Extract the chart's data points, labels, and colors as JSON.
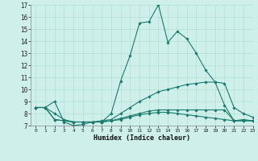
{
  "xlabel": "Humidex (Indice chaleur)",
  "x_ticks": [
    0,
    1,
    2,
    3,
    4,
    5,
    6,
    7,
    8,
    9,
    10,
    11,
    12,
    13,
    14,
    15,
    16,
    17,
    18,
    19,
    20,
    21,
    22,
    23
  ],
  "ylim": [
    7,
    17
  ],
  "xlim": [
    -0.5,
    23
  ],
  "yticks": [
    7,
    8,
    9,
    10,
    11,
    12,
    13,
    14,
    15,
    16,
    17
  ],
  "bg_color": "#cff0ea",
  "line_color": "#1a7a6e",
  "grid_color": "#aaddcc",
  "series": [
    [
      8.5,
      8.5,
      9.0,
      7.3,
      7.0,
      7.1,
      7.3,
      7.3,
      8.0,
      10.7,
      12.8,
      15.5,
      15.6,
      17.0,
      13.9,
      14.8,
      14.2,
      13.0,
      11.6,
      10.6,
      8.7,
      7.4,
      7.5,
      7.4
    ],
    [
      8.5,
      8.5,
      8.0,
      7.5,
      7.3,
      7.3,
      7.3,
      7.4,
      7.5,
      8.0,
      8.5,
      9.0,
      9.4,
      9.8,
      10.0,
      10.2,
      10.4,
      10.5,
      10.6,
      10.6,
      10.5,
      8.5,
      8.0,
      7.7
    ],
    [
      8.5,
      8.5,
      7.5,
      7.4,
      7.3,
      7.3,
      7.3,
      7.3,
      7.4,
      7.5,
      7.7,
      7.9,
      8.0,
      8.1,
      8.1,
      8.0,
      7.9,
      7.8,
      7.7,
      7.6,
      7.5,
      7.4,
      7.4,
      7.4
    ],
    [
      8.5,
      8.5,
      7.5,
      7.4,
      7.3,
      7.3,
      7.3,
      7.3,
      7.4,
      7.6,
      7.8,
      8.0,
      8.2,
      8.3,
      8.3,
      8.3,
      8.3,
      8.3,
      8.3,
      8.3,
      8.3,
      7.4,
      7.4,
      7.4
    ]
  ]
}
